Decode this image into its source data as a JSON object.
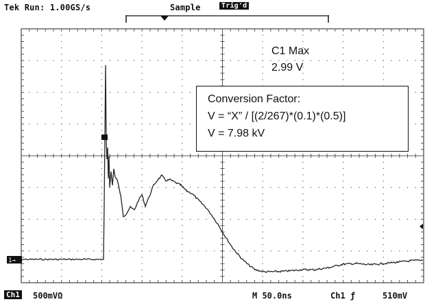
{
  "header": {
    "run_status": "Tek Run: 1.00GS/s",
    "acq_mode": "Sample",
    "trigger_state": "Trig'd"
  },
  "measurement": {
    "label": "C1 Max",
    "value": "2.99 V"
  },
  "conversion": {
    "title": "Conversion Factor:",
    "formula": "V = “X” / [(2/267)*(0.1)*(0.5)]",
    "result": "V = 7.98 kV"
  },
  "footer": {
    "channel": "Ch1",
    "channel_scale": "500mVΩ",
    "timebase": "M 50.0ns",
    "trigger_source": "Ch1 ƒ",
    "trigger_level": "510mV"
  },
  "markers": {
    "ground_marker": "1→"
  },
  "colors": {
    "trace": "#222222",
    "grid": "#555555",
    "background": "#ffffff"
  }
}
